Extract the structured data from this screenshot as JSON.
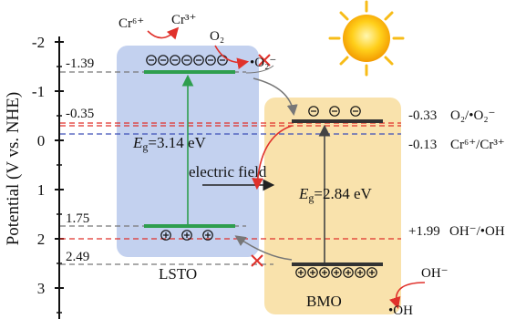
{
  "axis": {
    "label": "Potential (V vs. NHE)",
    "ticks": [
      "-2",
      "-1",
      "0",
      "1",
      "2",
      "3"
    ]
  },
  "dashed_levels": {
    "lsto_cb": "-1.39",
    "lsto_cb_shift": "-0.35",
    "lsto_vb": "1.75",
    "lsto_vb_deep": "2.49",
    "o2_level": "-0.33",
    "o2_species": "O₂/•O₂⁻",
    "cr_level": "-0.13",
    "cr_species": "Cr⁶⁺/Cr³⁺",
    "oh_level": "+1.99",
    "oh_species": "OH⁻/•OH"
  },
  "materials": {
    "lsto": "LSTO",
    "bmo": "BMO",
    "lsto_gap_symbol": "E",
    "lsto_gap_sub": "g",
    "lsto_gap_value": "=3.14 eV",
    "bmo_gap_symbol": "E",
    "bmo_gap_sub": "g",
    "bmo_gap_value": "=2.84 eV"
  },
  "annotations": {
    "electric_field": "electric field",
    "cr6": "Cr⁶⁺",
    "cr3": "Cr³⁺",
    "o2": "O₂",
    "o2_radical": "•O₂⁻",
    "oh_minus": "OH⁻",
    "oh_radical": "•OH"
  },
  "carriers": {
    "lsto_electrons": 7,
    "lsto_holes": 3,
    "bmo_electrons": 3,
    "bmo_holes": 7
  },
  "colors": {
    "lsto_box": "#b9c9ec",
    "bmo_box": "#f8dfa3",
    "green_band": "#2e9e4e",
    "red_dash": "#e0312b",
    "blue_dash": "#3d4fb8",
    "gray_dash": "#777777",
    "arrow_red": "#e0312b"
  }
}
